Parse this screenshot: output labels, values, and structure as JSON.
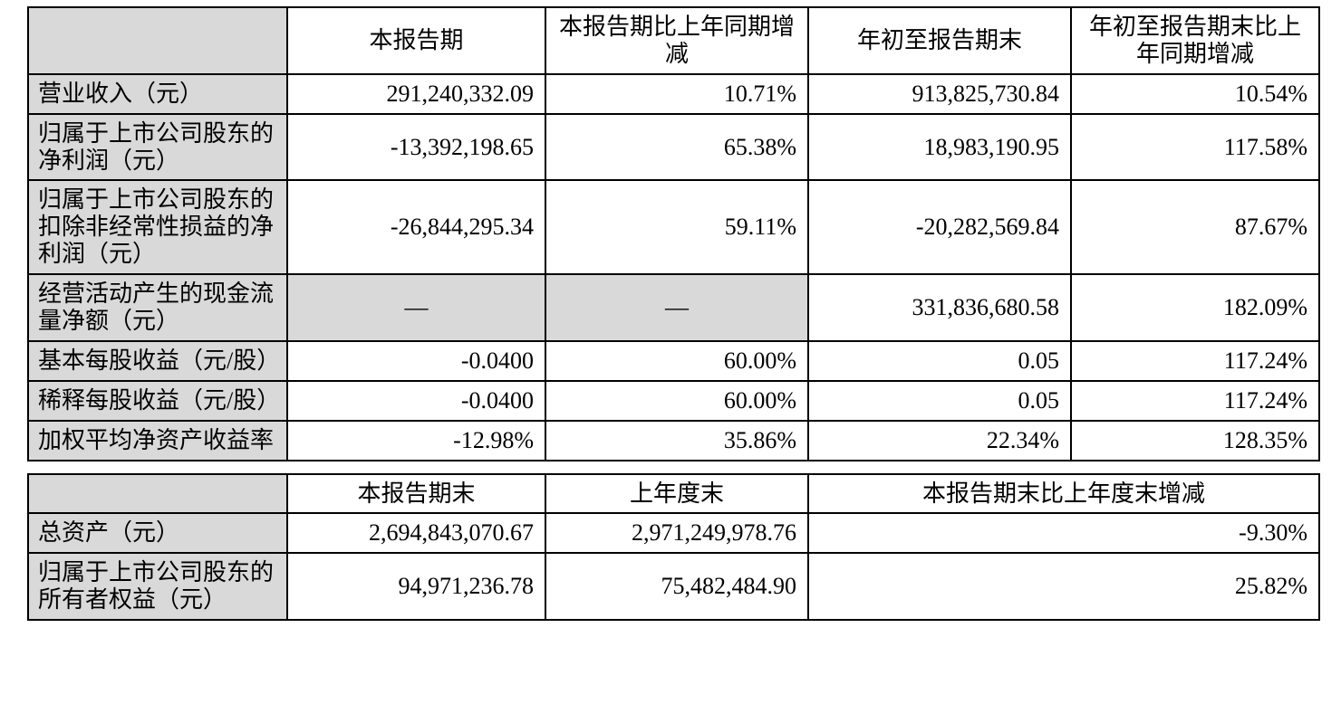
{
  "colors": {
    "page_bg": "#ffffff",
    "label_bg": "#d9d9d9",
    "border": "#000000",
    "text": "#000000"
  },
  "table1": {
    "headers": [
      "",
      "本报告期",
      "本报告期比上年同期增减",
      "年初至报告期末",
      "年初至报告期末比上年同期增减"
    ],
    "rows": [
      {
        "label": "营业收入（元）",
        "values": [
          "291,240,332.09",
          "10.71%",
          "913,825,730.84",
          "10.54%"
        ]
      },
      {
        "label": "归属于上市公司股东的净利润（元）",
        "values": [
          "-13,392,198.65",
          "65.38%",
          "18,983,190.95",
          "117.58%"
        ]
      },
      {
        "label": "归属于上市公司股东的扣除非经常性损益的净利润（元）",
        "values": [
          "-26,844,295.34",
          "59.11%",
          "-20,282,569.84",
          "87.67%"
        ]
      },
      {
        "label": "经营活动产生的现金流量净额（元）",
        "values": [
          "—",
          "—",
          "331,836,680.58",
          "182.09%"
        ]
      },
      {
        "label": "基本每股收益（元/股）",
        "values": [
          "-0.0400",
          "60.00%",
          "0.05",
          "117.24%"
        ]
      },
      {
        "label": "稀释每股收益（元/股）",
        "values": [
          "-0.0400",
          "60.00%",
          "0.05",
          "117.24%"
        ]
      },
      {
        "label": "加权平均净资产收益率",
        "values": [
          "-12.98%",
          "35.86%",
          "22.34%",
          "128.35%"
        ]
      }
    ]
  },
  "table2": {
    "headers": [
      "",
      "本报告期末",
      "上年度末",
      "本报告期末比上年度末增减"
    ],
    "rows": [
      {
        "label": "总资产（元）",
        "values": [
          "2,694,843,070.67",
          "2,971,249,978.76",
          "-9.30%"
        ]
      },
      {
        "label": "归属于上市公司股东的所有者权益（元）",
        "values": [
          "94,971,236.78",
          "75,482,484.90",
          "25.82%"
        ]
      }
    ]
  }
}
